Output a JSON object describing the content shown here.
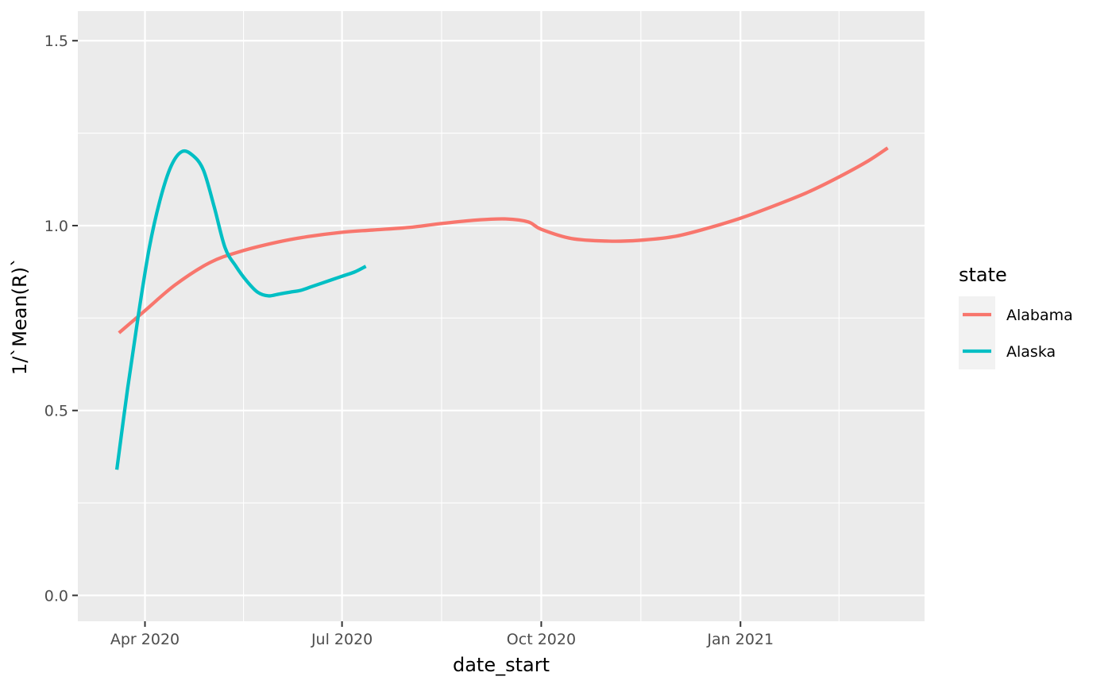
{
  "chart_data": {
    "type": "line",
    "xlabel": "date_start",
    "ylabel": "1/`Mean(R)`",
    "x_axis": {
      "type": "date",
      "range": [
        "2020-03-01",
        "2021-03-27"
      ],
      "ticks": [
        {
          "date": "2020-04-01",
          "label": "Apr 2020"
        },
        {
          "date": "2020-07-01",
          "label": "Jul 2020"
        },
        {
          "date": "2020-10-01",
          "label": "Oct 2020"
        },
        {
          "date": "2021-01-01",
          "label": "Jan 2021"
        }
      ]
    },
    "y_axis": {
      "range": [
        -0.07,
        1.58
      ],
      "ticks": [
        {
          "value": 0.0,
          "label": "0.0"
        },
        {
          "value": 0.5,
          "label": "0.5"
        },
        {
          "value": 1.0,
          "label": "1.0"
        },
        {
          "value": 1.5,
          "label": "1.5"
        }
      ],
      "minor_ticks": [
        0.25,
        0.75,
        1.25
      ]
    },
    "grid": true,
    "legend": {
      "title": "state",
      "position": "right",
      "items": [
        {
          "label": "Alabama",
          "color": "#F8766D"
        },
        {
          "label": "Alaska",
          "color": "#00BFC4"
        }
      ]
    },
    "series": [
      {
        "name": "Alabama",
        "color": "#F8766D",
        "points": [
          [
            "2020-03-20",
            0.71
          ],
          [
            "2020-04-01",
            0.77
          ],
          [
            "2020-04-15",
            0.84
          ],
          [
            "2020-05-01",
            0.9
          ],
          [
            "2020-05-15",
            0.93
          ],
          [
            "2020-06-01",
            0.955
          ],
          [
            "2020-06-15",
            0.97
          ],
          [
            "2020-07-01",
            0.982
          ],
          [
            "2020-07-15",
            0.988
          ],
          [
            "2020-08-01",
            0.995
          ],
          [
            "2020-08-15",
            1.005
          ],
          [
            "2020-09-01",
            1.015
          ],
          [
            "2020-09-15",
            1.018
          ],
          [
            "2020-09-25",
            1.01
          ],
          [
            "2020-10-01",
            0.99
          ],
          [
            "2020-10-15",
            0.965
          ],
          [
            "2020-11-01",
            0.958
          ],
          [
            "2020-11-15",
            0.96
          ],
          [
            "2020-12-01",
            0.97
          ],
          [
            "2020-12-15",
            0.99
          ],
          [
            "2021-01-01",
            1.02
          ],
          [
            "2021-01-15",
            1.05
          ],
          [
            "2021-02-01",
            1.09
          ],
          [
            "2021-02-15",
            1.13
          ],
          [
            "2021-03-01",
            1.175
          ],
          [
            "2021-03-10",
            1.21
          ]
        ]
      },
      {
        "name": "Alaska",
        "color": "#00BFC4",
        "points": [
          [
            "2020-03-19",
            0.34
          ],
          [
            "2020-03-24",
            0.56
          ],
          [
            "2020-03-29",
            0.76
          ],
          [
            "2020-04-03",
            0.94
          ],
          [
            "2020-04-08",
            1.07
          ],
          [
            "2020-04-13",
            1.16
          ],
          [
            "2020-04-18",
            1.2
          ],
          [
            "2020-04-23",
            1.19
          ],
          [
            "2020-04-28",
            1.15
          ],
          [
            "2020-05-03",
            1.05
          ],
          [
            "2020-05-08",
            0.94
          ],
          [
            "2020-05-13",
            0.89
          ],
          [
            "2020-05-18",
            0.85
          ],
          [
            "2020-05-23",
            0.82
          ],
          [
            "2020-05-28",
            0.81
          ],
          [
            "2020-06-02",
            0.815
          ],
          [
            "2020-06-07",
            0.82
          ],
          [
            "2020-06-12",
            0.825
          ],
          [
            "2020-06-17",
            0.835
          ],
          [
            "2020-06-22",
            0.845
          ],
          [
            "2020-06-27",
            0.855
          ],
          [
            "2020-07-02",
            0.865
          ],
          [
            "2020-07-07",
            0.875
          ],
          [
            "2020-07-12",
            0.89
          ]
        ]
      }
    ]
  }
}
